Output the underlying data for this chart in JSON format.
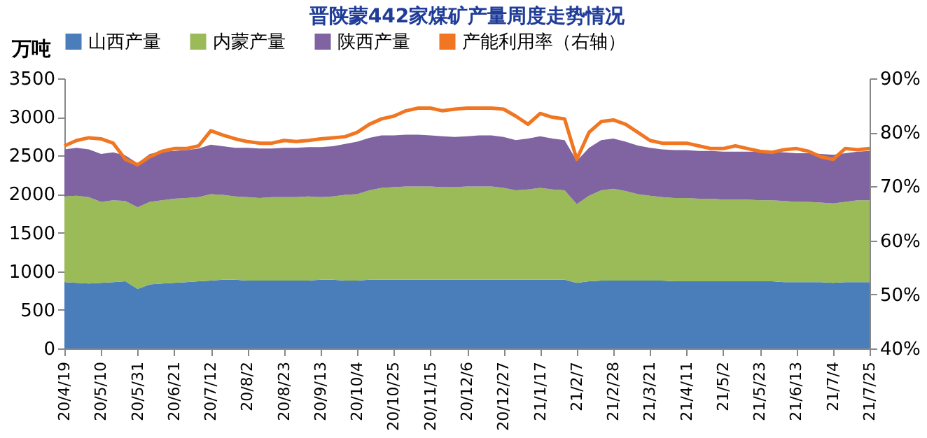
{
  "chart_data": {
    "type": "area",
    "title": "晋陕蒙442家煤矿产量周度走势情况",
    "ylabel": "万吨",
    "stacked": true,
    "legend": "top",
    "grid": false,
    "categories": [
      "20/4/19",
      null,
      null,
      "20/5/10",
      null,
      null,
      "20/5/31",
      null,
      null,
      "20/6/21",
      null,
      null,
      "20/7/12",
      null,
      null,
      "20/8/2",
      null,
      null,
      "20/8/23",
      null,
      null,
      "20/9/13",
      null,
      null,
      "20/10/4",
      null,
      null,
      "20/10/25",
      null,
      null,
      "20/11/15",
      null,
      null,
      "20/12/6",
      null,
      null,
      "20/12/27",
      null,
      null,
      "21/1/17",
      null,
      null,
      "21/2/7",
      null,
      null,
      "21/2/28",
      null,
      null,
      "21/3/21",
      null,
      null,
      "21/4/11",
      null,
      null,
      "21/5/2",
      null,
      null,
      "21/5/23",
      null,
      null,
      "21/6/13",
      null,
      null,
      "21/7/4",
      null,
      null,
      "21/7/25"
    ],
    "ylim": [
      0,
      3500
    ],
    "yticks": [
      0,
      500,
      1000,
      1500,
      2000,
      2500,
      3000,
      3500
    ],
    "y2lim": [
      40,
      90
    ],
    "y2ticks": [
      {
        "value": 40,
        "label": "40%"
      },
      {
        "value": 50,
        "label": "50%"
      },
      {
        "value": 60,
        "label": "60%"
      },
      {
        "value": 70,
        "label": "70%"
      },
      {
        "value": 80,
        "label": "80%"
      },
      {
        "value": 90,
        "label": "90%"
      }
    ],
    "series": [
      {
        "name": "山西产量",
        "color": "#4a7ebb",
        "values": [
          860,
          850,
          840,
          850,
          860,
          870,
          770,
          830,
          840,
          850,
          860,
          870,
          880,
          890,
          890,
          880,
          880,
          880,
          880,
          880,
          880,
          890,
          890,
          880,
          880,
          890,
          890,
          890,
          890,
          890,
          890,
          890,
          890,
          890,
          890,
          890,
          890,
          890,
          890,
          890,
          890,
          890,
          850,
          870,
          880,
          880,
          880,
          880,
          880,
          880,
          870,
          870,
          870,
          870,
          870,
          870,
          870,
          870,
          870,
          860,
          860,
          860,
          860,
          850,
          860,
          860,
          860
        ]
      },
      {
        "name": "内蒙产量",
        "color": "#9bbb59",
        "values": [
          1110,
          1130,
          1120,
          1050,
          1060,
          1040,
          1060,
          1070,
          1080,
          1090,
          1090,
          1090,
          1120,
          1100,
          1080,
          1080,
          1070,
          1080,
          1080,
          1080,
          1090,
          1070,
          1080,
          1110,
          1120,
          1160,
          1190,
          1200,
          1210,
          1210,
          1210,
          1200,
          1200,
          1210,
          1210,
          1210,
          1190,
          1160,
          1170,
          1190,
          1170,
          1160,
          1020,
          1110,
          1170,
          1190,
          1160,
          1120,
          1100,
          1080,
          1080,
          1080,
          1070,
          1070,
          1060,
          1060,
          1060,
          1050,
          1050,
          1050,
          1040,
          1040,
          1030,
          1030,
          1040,
          1060,
          1060
        ]
      },
      {
        "name": "陕西产量",
        "color": "#8064a2",
        "values": [
          610,
          620,
          620,
          620,
          620,
          590,
          570,
          620,
          630,
          620,
          620,
          630,
          640,
          630,
          630,
          640,
          640,
          630,
          640,
          640,
          640,
          650,
          650,
          660,
          680,
          680,
          680,
          670,
          670,
          670,
          660,
          660,
          650,
          650,
          660,
          660,
          660,
          650,
          660,
          670,
          660,
          650,
          560,
          620,
          650,
          650,
          640,
          630,
          620,
          620,
          620,
          620,
          620,
          620,
          620,
          620,
          620,
          630,
          630,
          630,
          630,
          630,
          630,
          630,
          630,
          630,
          640
        ]
      },
      {
        "name": "产能利用率（右轴）",
        "type": "line",
        "axis": "y2",
        "color": "#f07622",
        "values": [
          77.5,
          78.5,
          79,
          78.8,
          78,
          75,
          74,
          75.5,
          76.5,
          77,
          77,
          77.5,
          80.3,
          79.5,
          78.8,
          78.3,
          78,
          78,
          78.5,
          78.3,
          78.5,
          78.8,
          79,
          79.2,
          80,
          81.5,
          82.5,
          83,
          84,
          84.5,
          84.5,
          84,
          84.3,
          84.5,
          84.5,
          84.5,
          84.3,
          83,
          81.5,
          83.5,
          82.8,
          82.5,
          75,
          80,
          82,
          82.3,
          81.5,
          80,
          78.5,
          78,
          78,
          78,
          77.5,
          77,
          77,
          77.5,
          77,
          76.5,
          76.3,
          76.8,
          77,
          76.5,
          75.5,
          75,
          77,
          76.8,
          77
        ]
      }
    ]
  }
}
